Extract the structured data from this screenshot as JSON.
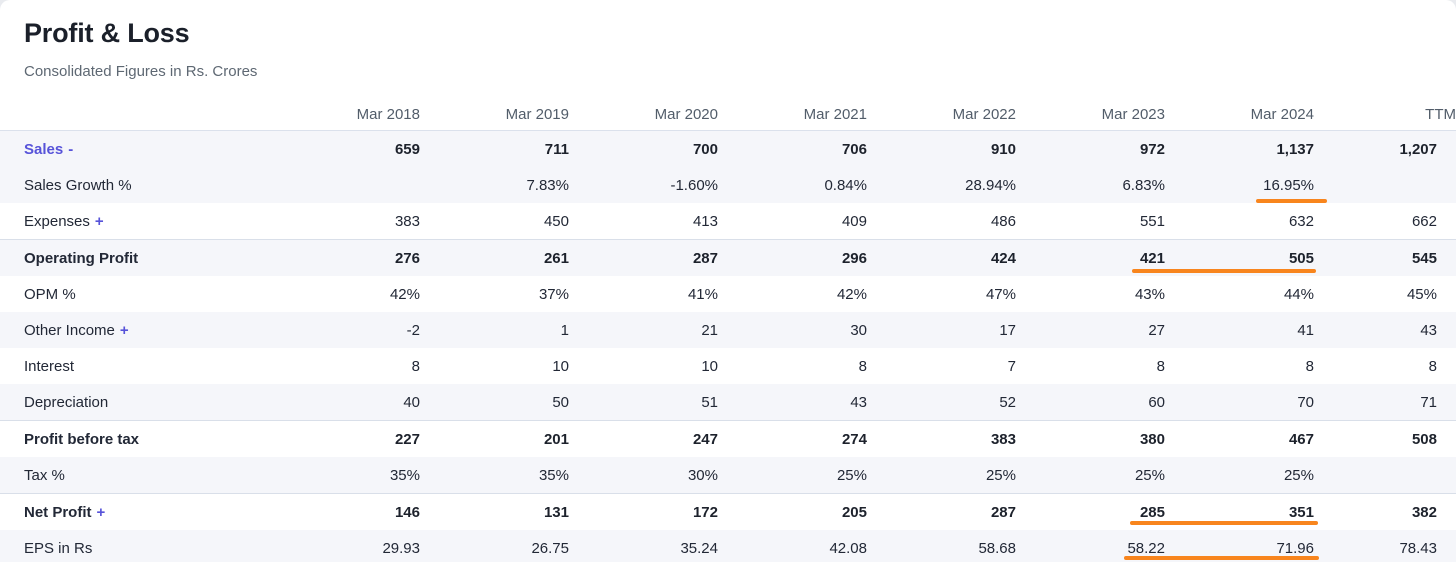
{
  "card": {
    "title": "Profit & Loss",
    "subtitle": "Consolidated Figures in Rs. Crores"
  },
  "table": {
    "columns": [
      "Mar 2018",
      "Mar 2019",
      "Mar 2020",
      "Mar 2021",
      "Mar 2022",
      "Mar 2023",
      "Mar 2024",
      "TTM"
    ],
    "rows": [
      {
        "id": "sales",
        "label": "Sales",
        "expand": "-",
        "link": true,
        "bold_values": true,
        "values": [
          "659",
          "711",
          "700",
          "706",
          "910",
          "972",
          "1,137",
          "1,207"
        ]
      },
      {
        "id": "sales-growth",
        "label": "Sales Growth %",
        "values": [
          "",
          "7.83%",
          "-1.60%",
          "0.84%",
          "28.94%",
          "6.83%",
          "16.95%",
          ""
        ]
      },
      {
        "id": "expenses",
        "label": "Expenses",
        "expand": "+",
        "values": [
          "383",
          "450",
          "413",
          "409",
          "486",
          "551",
          "632",
          "662"
        ]
      },
      {
        "id": "operating-profit",
        "label": "Operating Profit",
        "strong": true,
        "values": [
          "276",
          "261",
          "287",
          "296",
          "424",
          "421",
          "505",
          "545"
        ]
      },
      {
        "id": "opm",
        "label": "OPM %",
        "values": [
          "42%",
          "37%",
          "41%",
          "42%",
          "47%",
          "43%",
          "44%",
          "45%"
        ]
      },
      {
        "id": "other-income",
        "label": "Other Income",
        "expand": "+",
        "values": [
          "-2",
          "1",
          "21",
          "30",
          "17",
          "27",
          "41",
          "43"
        ]
      },
      {
        "id": "interest",
        "label": "Interest",
        "values": [
          "8",
          "10",
          "10",
          "8",
          "7",
          "8",
          "8",
          "8"
        ]
      },
      {
        "id": "depreciation",
        "label": "Depreciation",
        "values": [
          "40",
          "50",
          "51",
          "43",
          "52",
          "60",
          "70",
          "71"
        ]
      },
      {
        "id": "profit-before-tax",
        "label": "Profit before tax",
        "strong": true,
        "values": [
          "227",
          "201",
          "247",
          "274",
          "383",
          "380",
          "467",
          "508"
        ]
      },
      {
        "id": "tax",
        "label": "Tax %",
        "values": [
          "35%",
          "35%",
          "30%",
          "25%",
          "25%",
          "25%",
          "25%",
          ""
        ]
      },
      {
        "id": "net-profit",
        "label": "Net Profit",
        "expand": "+",
        "strong": true,
        "values": [
          "146",
          "131",
          "172",
          "205",
          "287",
          "285",
          "351",
          "382"
        ]
      },
      {
        "id": "eps",
        "label": "EPS in Rs",
        "values": [
          "29.93",
          "26.75",
          "35.24",
          "42.08",
          "58.68",
          "58.22",
          "71.96",
          "78.43"
        ]
      }
    ]
  },
  "annotations": {
    "highlight_color": "#F8851D",
    "underlines": [
      {
        "row": "Sales Growth %",
        "columns": [
          "Mar 2024"
        ],
        "values": [
          "16.95%"
        ]
      },
      {
        "row": "Operating Profit",
        "columns": [
          "Mar 2023",
          "Mar 2024"
        ],
        "values": [
          "421",
          "505"
        ]
      },
      {
        "row": "Net Profit",
        "columns": [
          "Mar 2023",
          "Mar 2024"
        ],
        "values": [
          "285",
          "351"
        ]
      },
      {
        "row": "EPS in Rs",
        "columns": [
          "Mar 2023",
          "Mar 2024"
        ],
        "values": [
          "58.22",
          "71.96"
        ]
      }
    ]
  }
}
